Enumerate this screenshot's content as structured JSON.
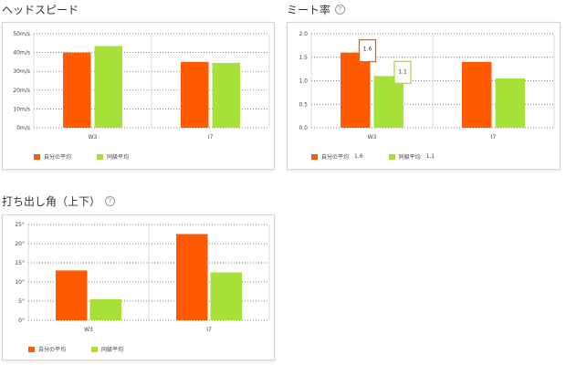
{
  "legend": {
    "own": "自分の平均",
    "peer": "同級平均"
  },
  "colors": {
    "own": "#ff5a00",
    "peer": "#a8e03a"
  },
  "charts": {
    "head_speed": {
      "title": "ヘッドスピード",
      "chart_data": {
        "type": "bar",
        "categories": [
          "W3",
          "I7"
        ],
        "series": [
          {
            "name": "自分の平均",
            "values": [
              40,
              35
            ]
          },
          {
            "name": "同級平均",
            "values": [
              43.5,
              34.5
            ]
          }
        ],
        "ylim": [
          0,
          50
        ],
        "yticks": [
          "0m/s",
          "10m/s",
          "20m/s",
          "30m/s",
          "40m/s",
          "50m/s"
        ],
        "grid": true,
        "legend_position": "bottom-left"
      }
    },
    "meet_rate": {
      "title": "ミート率",
      "legend_values": {
        "own": "1.6",
        "peer": "1.1"
      },
      "callouts": {
        "own": "1.6",
        "peer": "1.1"
      },
      "chart_data": {
        "type": "bar",
        "categories": [
          "W3",
          "I7"
        ],
        "series": [
          {
            "name": "自分の平均",
            "values": [
              1.6,
              1.4
            ]
          },
          {
            "name": "同級平均",
            "values": [
              1.1,
              1.05
            ]
          }
        ],
        "ylim": [
          0,
          2.0
        ],
        "yticks": [
          "0.0",
          "0.5",
          "1.0",
          "1.5",
          "2.0"
        ],
        "grid": true,
        "legend_position": "bottom-left"
      }
    },
    "launch_angle": {
      "title": "打ち出し角（上下）",
      "chart_data": {
        "type": "bar",
        "categories": [
          "W3",
          "I7"
        ],
        "series": [
          {
            "name": "自分の平均",
            "values": [
              13,
              22.5
            ]
          },
          {
            "name": "同級平均",
            "values": [
              5.5,
              12.5
            ]
          }
        ],
        "ylim": [
          0,
          25
        ],
        "yticks": [
          "0°",
          "5°",
          "10°",
          "15°",
          "20°",
          "25°"
        ],
        "grid": true,
        "legend_position": "bottom-left"
      }
    }
  }
}
